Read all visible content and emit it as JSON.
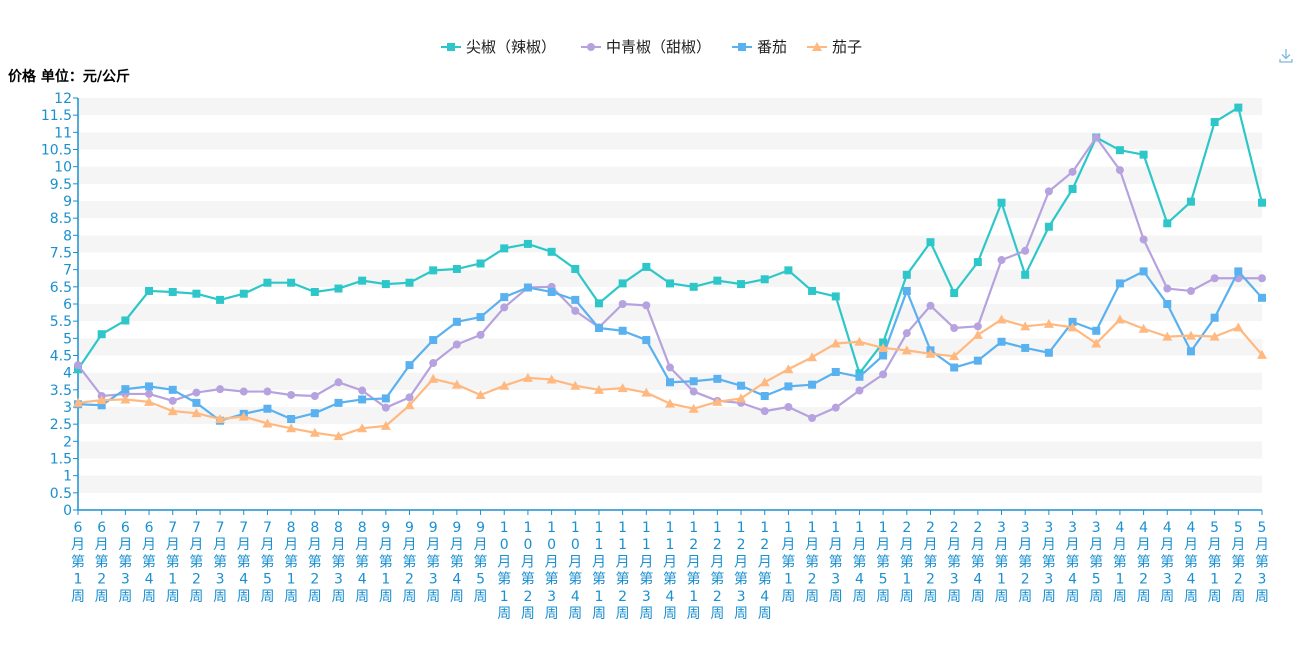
{
  "toolbar": {
    "download_icon": "download-icon"
  },
  "chart_data": {
    "type": "line",
    "title": "",
    "ylabel": "价格 单位：元/公斤",
    "xlabel": "",
    "ylim": [
      0,
      12
    ],
    "y_interval": 0.5,
    "grid": "horizontal bands",
    "legend_position": "top-center",
    "axis_color": "#1a90d0",
    "categories": [
      "6月第1周",
      "6月第2周",
      "6月第3周",
      "6月第4周",
      "7月第1周",
      "7月第2周",
      "7月第3周",
      "7月第4周",
      "7月第5周",
      "8月第1周",
      "8月第2周",
      "8月第3周",
      "8月第4周",
      "9月第1周",
      "9月第2周",
      "9月第3周",
      "9月第4周",
      "9月第5周",
      "10月第1周",
      "10月第2周",
      "10月第3周",
      "10月第4周",
      "11月第1周",
      "11月第2周",
      "11月第3周",
      "11月第4周",
      "12月第1周",
      "12月第2周",
      "12月第3周",
      "12月第4周",
      "1月第1周",
      "1月第2周",
      "1月第3周",
      "1月第4周",
      "1月第5周",
      "2月第1周",
      "2月第2周",
      "2月第3周",
      "2月第4周",
      "3月第1周",
      "3月第2周",
      "3月第3周",
      "3月第4周",
      "3月第5周",
      "4月第1周",
      "4月第2周",
      "4月第3周",
      "4月第4周",
      "5月第1周",
      "5月第2周",
      "5月第3周"
    ],
    "series": [
      {
        "name": "尖椒（辣椒）",
        "color": "#2ec7c9",
        "marker": "square",
        "values": [
          4.1,
          5.12,
          5.52,
          6.38,
          6.35,
          6.3,
          6.12,
          6.3,
          6.62,
          6.62,
          6.35,
          6.45,
          6.68,
          6.58,
          6.62,
          6.98,
          7.02,
          7.18,
          7.62,
          7.75,
          7.52,
          7.02,
          6.02,
          6.6,
          7.08,
          6.6,
          6.5,
          6.68,
          6.58,
          6.72,
          6.98,
          6.38,
          6.22,
          3.98,
          4.88,
          6.85,
          7.8,
          6.32,
          7.22,
          8.95,
          6.85,
          8.25,
          9.35,
          10.85,
          10.48,
          10.35,
          8.35,
          8.98,
          11.3,
          11.72,
          8.95
        ]
      },
      {
        "name": "中青椒（甜椒）",
        "color": "#b6a2de",
        "marker": "circle",
        "values": [
          4.22,
          3.32,
          3.38,
          3.38,
          3.18,
          3.42,
          3.52,
          3.45,
          3.45,
          3.35,
          3.32,
          3.72,
          3.48,
          2.98,
          3.28,
          4.28,
          4.82,
          5.1,
          5.9,
          6.48,
          6.5,
          5.8,
          5.32,
          6.0,
          5.96,
          4.15,
          3.45,
          3.18,
          3.12,
          2.88,
          3.0,
          2.68,
          2.98,
          3.48,
          3.95,
          5.15,
          5.95,
          5.3,
          5.35,
          7.28,
          7.55,
          9.28,
          9.85,
          10.85,
          9.9,
          7.88,
          6.45,
          6.38,
          6.75,
          6.75,
          6.75
        ]
      },
      {
        "name": "番茄",
        "color": "#5ab1ef",
        "marker": "square",
        "values": [
          3.08,
          3.05,
          3.52,
          3.6,
          3.5,
          3.12,
          2.6,
          2.8,
          2.95,
          2.65,
          2.82,
          3.12,
          3.22,
          3.25,
          4.22,
          4.95,
          5.48,
          5.62,
          6.2,
          6.48,
          6.35,
          6.12,
          5.3,
          5.22,
          4.95,
          3.72,
          3.75,
          3.82,
          3.62,
          3.32,
          3.6,
          3.65,
          4.02,
          3.88,
          4.5,
          6.38,
          4.65,
          4.15,
          4.35,
          4.9,
          4.72,
          4.58,
          5.48,
          5.22,
          6.6,
          6.95,
          6.0,
          4.62,
          5.6,
          6.95,
          6.18
        ]
      },
      {
        "name": "茄子",
        "color": "#ffb980",
        "marker": "triangle",
        "values": [
          3.12,
          3.2,
          3.22,
          3.15,
          2.88,
          2.82,
          2.65,
          2.72,
          2.52,
          2.38,
          2.25,
          2.15,
          2.38,
          2.45,
          3.05,
          3.82,
          3.65,
          3.35,
          3.62,
          3.85,
          3.8,
          3.62,
          3.5,
          3.55,
          3.42,
          3.1,
          2.95,
          3.15,
          3.25,
          3.72,
          4.1,
          4.45,
          4.85,
          4.9,
          4.72,
          4.65,
          4.55,
          4.48,
          5.1,
          5.55,
          5.35,
          5.42,
          5.32,
          4.85,
          5.55,
          5.28,
          5.05,
          5.08,
          5.05,
          5.32,
          4.52
        ]
      }
    ]
  }
}
